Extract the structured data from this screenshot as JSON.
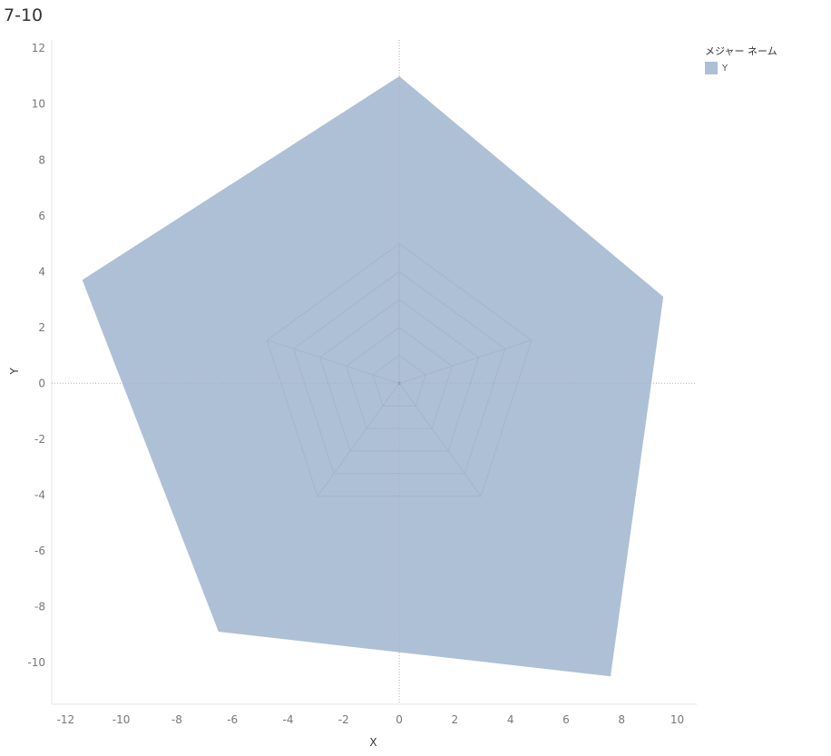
{
  "title": "7-10",
  "legend": {
    "title": "メジャー ネーム",
    "items": [
      {
        "label": "Y",
        "color": "#aec0d6"
      }
    ]
  },
  "chart_data": {
    "type": "area",
    "title": "7-10",
    "xlabel": "X",
    "ylabel": "Y",
    "xlim": [
      -12.5,
      10.7
    ],
    "ylim": [
      -11.5,
      12.3
    ],
    "xticks": [
      -12,
      -10,
      -8,
      -6,
      -4,
      -2,
      0,
      2,
      4,
      6,
      8,
      10
    ],
    "yticks": [
      12,
      10,
      8,
      6,
      4,
      2,
      0,
      -2,
      -4,
      -6,
      -8,
      -10
    ],
    "zero_lines": true,
    "grid": false,
    "legend_position": "top-right",
    "colors": {
      "fill": "#aec0d6",
      "web": "#9fb2c9",
      "zero": "#b0b0b0"
    },
    "series": [
      {
        "name": "Y",
        "points": [
          {
            "x": 0,
            "y": 11.0
          },
          {
            "x": 9.5,
            "y": 3.1
          },
          {
            "x": 7.6,
            "y": -10.5
          },
          {
            "x": -6.5,
            "y": -8.9
          },
          {
            "x": -11.4,
            "y": 3.7
          }
        ]
      }
    ],
    "web_radii": [
      1,
      2,
      3,
      4,
      5
    ]
  }
}
